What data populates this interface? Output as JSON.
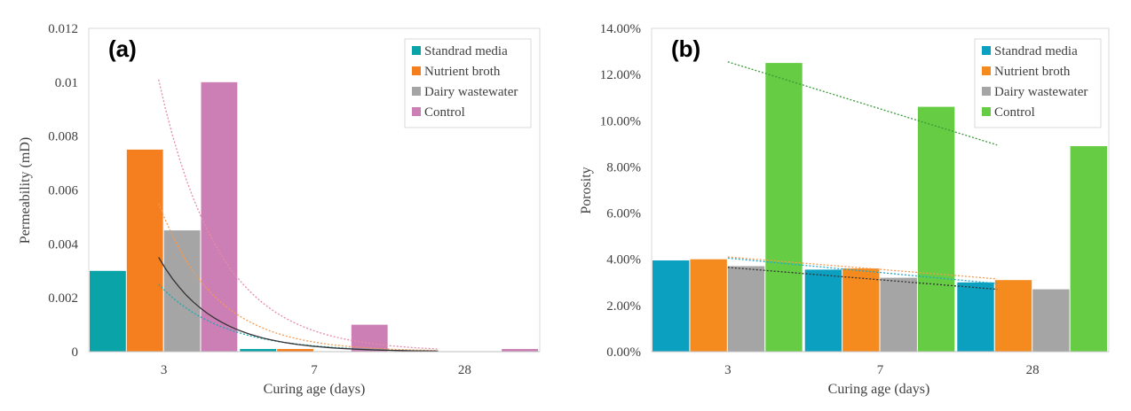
{
  "chart_data": [
    {
      "type": "bar",
      "panel_label": "(a)",
      "categories": [
        "3",
        "7",
        "28"
      ],
      "xlabel": "Curing age (days)",
      "ylabel": "Permeability (mD)",
      "ylim": [
        0,
        0.012
      ],
      "yticks": [
        0,
        0.002,
        0.004,
        0.006,
        0.008,
        0.01,
        0.012
      ],
      "ytick_labels": [
        "0",
        "0.002",
        "0.004",
        "0.006",
        "0.008",
        "0.01",
        "0.012"
      ],
      "legend_position": "top-right",
      "series": [
        {
          "name": "Standrad media",
          "color": "#0aa3a8",
          "values": [
            0.003,
            0.0001,
            0.0
          ]
        },
        {
          "name": "Nutrient broth",
          "color": "#f57f1e",
          "values": [
            0.0075,
            0.0001,
            0.0
          ]
        },
        {
          "name": "Dairy wastewater",
          "color": "#a5a5a5",
          "values": [
            0.0045,
            0.0,
            0.0
          ]
        },
        {
          "name": "Control",
          "color": "#cc7fb5",
          "values": [
            0.01,
            0.001,
            0.0001
          ]
        }
      ],
      "trendlines": [
        {
          "series": "Standrad media",
          "type": "exponential",
          "color": "#1aa8b0",
          "from": 0.0025,
          "to": 3e-05
        },
        {
          "series": "Nutrient broth",
          "type": "exponential",
          "color": "#f79a50",
          "from": 0.0055,
          "to": 4e-05
        },
        {
          "series": "Dairy wastewater",
          "type": "exponential",
          "color": "#333333",
          "from": 0.0035,
          "to": 2e-05
        },
        {
          "series": "Control",
          "type": "exponential",
          "color": "#e58ba8",
          "from": 0.0101,
          "to": 0.0001
        }
      ]
    },
    {
      "type": "bar",
      "panel_label": "(b)",
      "categories": [
        "3",
        "7",
        "28"
      ],
      "xlabel": "Curing age (days)",
      "ylabel": "Porosity",
      "ylim": [
        0,
        0.14
      ],
      "yticks": [
        0,
        0.02,
        0.04,
        0.06,
        0.08,
        0.1,
        0.12,
        0.14
      ],
      "ytick_labels": [
        "0.00%",
        "2.00%",
        "4.00%",
        "6.00%",
        "8.00%",
        "10.00%",
        "12.00%",
        "14.00%"
      ],
      "legend_position": "top-right",
      "series": [
        {
          "name": "Standrad media",
          "color": "#0b9fc0",
          "values": [
            0.0395,
            0.0355,
            0.03
          ]
        },
        {
          "name": "Nutrient broth",
          "color": "#f58a1f",
          "values": [
            0.04,
            0.036,
            0.031
          ]
        },
        {
          "name": "Dairy wastewater",
          "color": "#a5a5a5",
          "values": [
            0.037,
            0.032,
            0.027
          ]
        },
        {
          "name": "Control",
          "color": "#66cc44",
          "values": [
            0.125,
            0.106,
            0.089
          ]
        }
      ],
      "trendlines": [
        {
          "series": "Standrad media",
          "type": "linear",
          "color": "#1aaad0",
          "from": 0.0405,
          "to": 0.0295
        },
        {
          "series": "Nutrient broth",
          "type": "linear",
          "color": "#f79a50",
          "from": 0.041,
          "to": 0.0315
        },
        {
          "series": "Dairy wastewater",
          "type": "linear",
          "color": "#333333",
          "from": 0.0365,
          "to": 0.027
        },
        {
          "series": "Control",
          "type": "linear",
          "color": "#3a9a3a",
          "from": 0.1255,
          "to": 0.0895
        }
      ]
    }
  ]
}
